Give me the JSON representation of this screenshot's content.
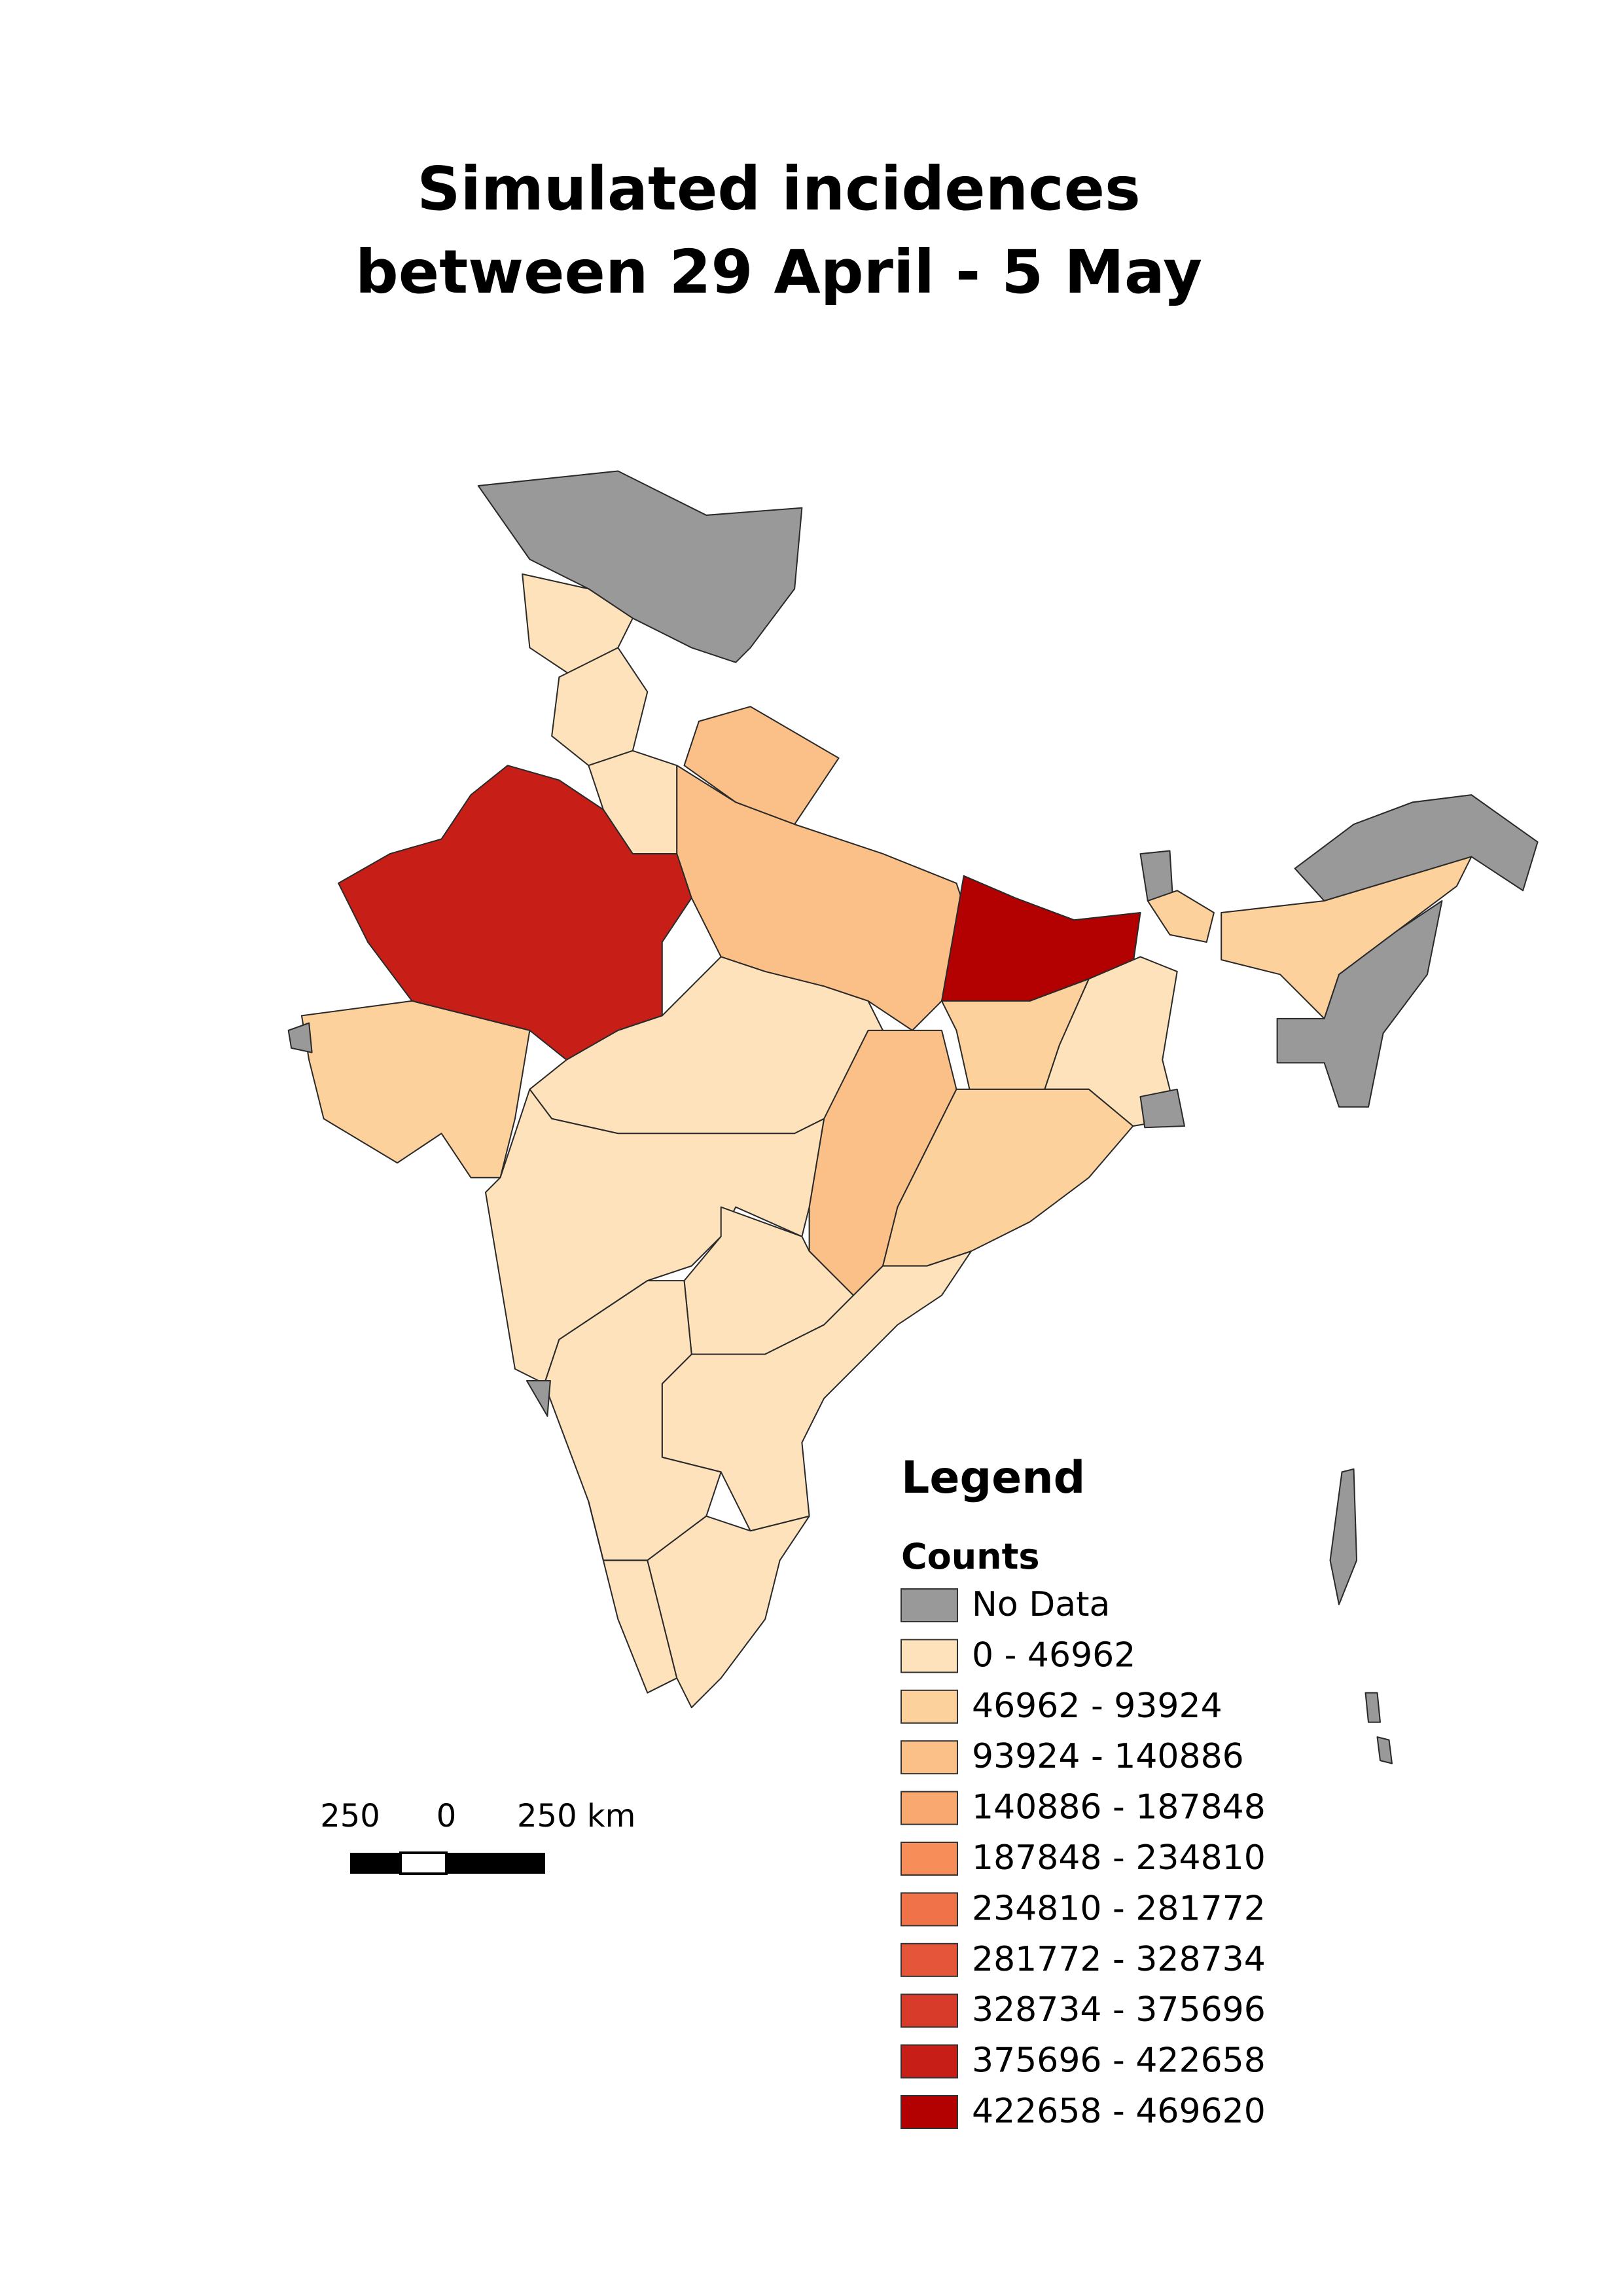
{
  "title": [
    "Simulated incidences",
    "between 29 April - 5 May"
  ],
  "legend": {
    "title": "Legend",
    "subtitle": "Counts",
    "items": [
      {
        "label": "No Data",
        "color": "#999999"
      },
      {
        "label": "0 - 46962",
        "color": "#fde2bb"
      },
      {
        "label": "46962 - 93924",
        "color": "#fcd19c"
      },
      {
        "label": "93924 - 140886",
        "color": "#fbc087"
      },
      {
        "label": "140886 - 187848",
        "color": "#f9a96f"
      },
      {
        "label": "187848 - 234810",
        "color": "#f78e5a"
      },
      {
        "label": "234810 - 281772",
        "color": "#f07249"
      },
      {
        "label": "281772 - 328734",
        "color": "#e55539"
      },
      {
        "label": "328734 - 375696",
        "color": "#d83b2a"
      },
      {
        "label": "375696 - 422658",
        "color": "#c71f17"
      },
      {
        "label": "422658 - 469620",
        "color": "#b30000"
      }
    ]
  },
  "scale_bar": {
    "labels": [
      "250",
      "0",
      "250 km"
    ]
  }
}
